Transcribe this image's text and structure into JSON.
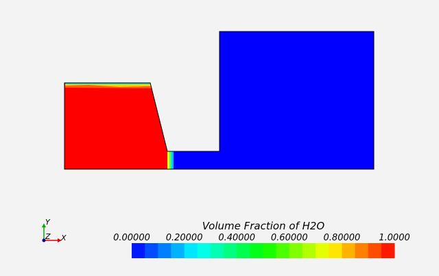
{
  "colorbar": {
    "title": "Volume Fraction of H2O",
    "range": [
      0,
      1
    ],
    "bands": 20,
    "ticks": [
      {
        "value": 0,
        "label": "0.00000"
      },
      {
        "value": 0.2,
        "label": "0.20000"
      },
      {
        "value": 0.4,
        "label": "0.40000"
      },
      {
        "value": 0.6,
        "label": "0.60000"
      },
      {
        "value": 0.8,
        "label": "0.80000"
      },
      {
        "value": 1,
        "label": "1.0000"
      }
    ]
  },
  "axes": {
    "x": "X",
    "y": "Y",
    "z": "Z"
  }
}
